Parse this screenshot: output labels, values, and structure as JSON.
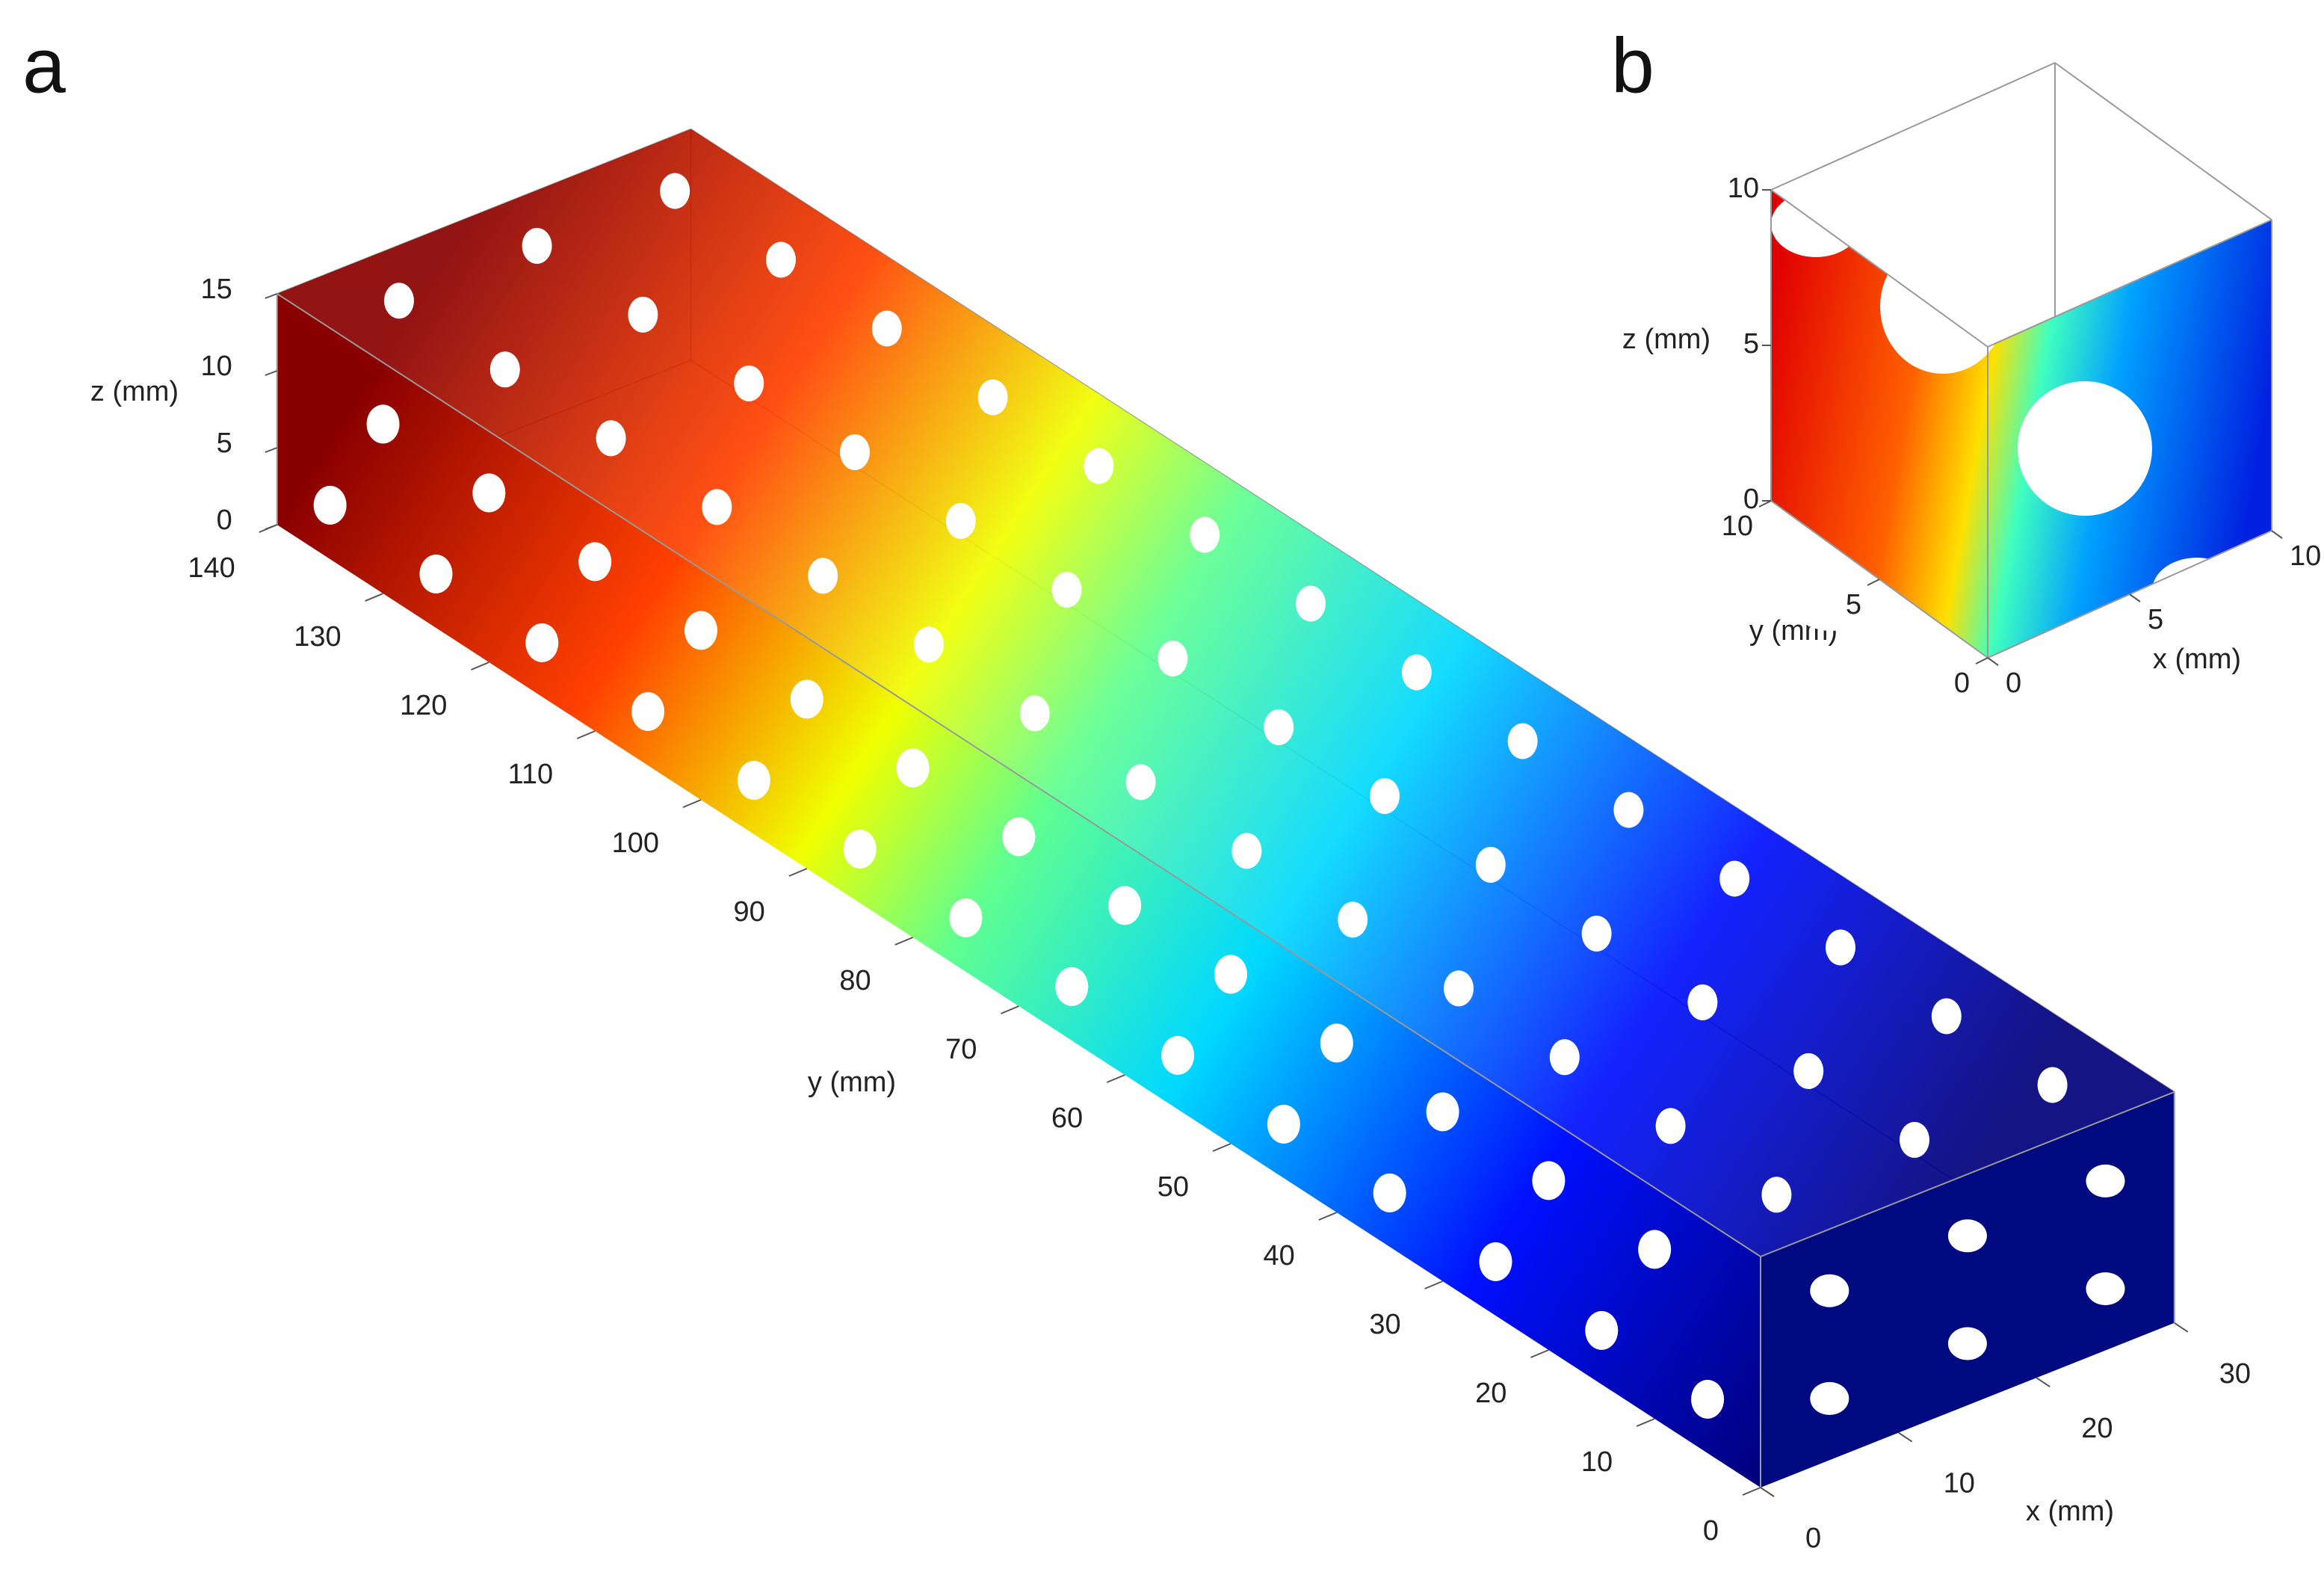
{
  "panels": [
    {
      "label": "a",
      "axes": {
        "x": {
          "label": "x (mm)",
          "ticks": [
            0,
            10,
            20,
            30
          ]
        },
        "y": {
          "label": "y (mm)",
          "ticks": [
            0,
            10,
            20,
            30,
            40,
            50,
            60,
            70,
            80,
            90,
            100,
            110,
            120,
            130,
            140
          ]
        },
        "z": {
          "label": "z (mm)",
          "ticks": [
            0,
            5,
            10,
            15
          ]
        }
      }
    },
    {
      "label": "b",
      "axes": {
        "x": {
          "label": "x (mm)",
          "ticks": [
            0,
            5,
            10
          ]
        },
        "y": {
          "label": "y (mm)",
          "ticks": [
            0,
            5,
            10
          ]
        },
        "z": {
          "label": "z (mm)",
          "ticks": [
            0,
            5,
            10
          ]
        }
      }
    }
  ]
}
